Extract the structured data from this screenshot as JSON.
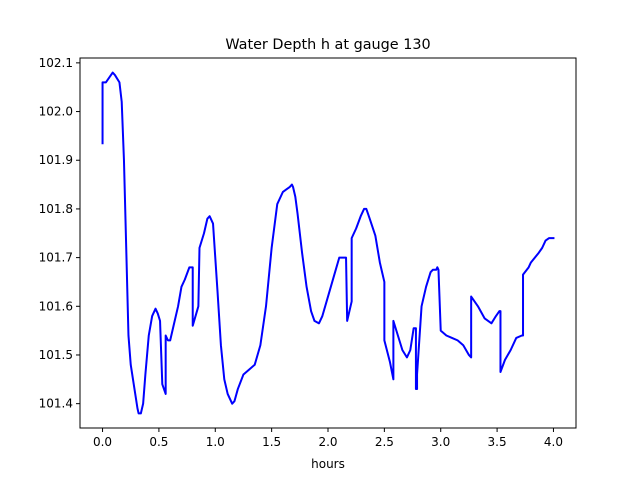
{
  "chart_data": {
    "type": "line",
    "title": "Water Depth h at gauge 130",
    "xlabel": "hours",
    "ylabel": "",
    "xlim": [
      -0.2,
      4.2
    ],
    "ylim": [
      101.35,
      102.11
    ],
    "xticks": [
      0.0,
      0.5,
      1.0,
      1.5,
      2.0,
      2.5,
      3.0,
      3.5,
      4.0
    ],
    "xtick_labels": [
      "0.0",
      "0.5",
      "1.0",
      "1.5",
      "2.0",
      "2.5",
      "3.0",
      "3.5",
      "4.0"
    ],
    "yticks": [
      101.4,
      101.5,
      101.6,
      101.7,
      101.8,
      101.9,
      102.0,
      102.1
    ],
    "ytick_labels": [
      "101.4",
      "101.5",
      "101.6",
      "101.7",
      "101.8",
      "101.9",
      "102.0",
      "102.1"
    ],
    "grid": false,
    "legend": "none",
    "series": [
      {
        "color": "#0000ff",
        "x": [
          0.0,
          0.0,
          0.03,
          0.06,
          0.09,
          0.11,
          0.15,
          0.17,
          0.19,
          0.21,
          0.23,
          0.25,
          0.27,
          0.29,
          0.31,
          0.32,
          0.34,
          0.36,
          0.38,
          0.41,
          0.44,
          0.47,
          0.49,
          0.51,
          0.53,
          0.53,
          0.56,
          0.56,
          0.58,
          0.6,
          0.63,
          0.67,
          0.7,
          0.73,
          0.77,
          0.8,
          0.8,
          0.85,
          0.86,
          0.9,
          0.93,
          0.95,
          0.98,
          1.0,
          1.02,
          1.05,
          1.08,
          1.11,
          1.15,
          1.17,
          1.2,
          1.25,
          1.3,
          1.35,
          1.4,
          1.45,
          1.5,
          1.55,
          1.6,
          1.63,
          1.66,
          1.68,
          1.69,
          1.71,
          1.73,
          1.77,
          1.81,
          1.85,
          1.88,
          1.92,
          1.95,
          2.0,
          2.05,
          2.1,
          2.16,
          2.17,
          2.17,
          2.21,
          2.21,
          2.25,
          2.29,
          2.32,
          2.34,
          2.37,
          2.42,
          2.46,
          2.5,
          2.5,
          2.55,
          2.58,
          2.58,
          2.62,
          2.66,
          2.7,
          2.73,
          2.76,
          2.78,
          2.78,
          2.79,
          2.79,
          2.83,
          2.87,
          2.91,
          2.93,
          2.96,
          2.97,
          2.98,
          3.0,
          3.05,
          3.1,
          3.15,
          3.2,
          3.25,
          3.27,
          3.27,
          3.33,
          3.39,
          3.45,
          3.49,
          3.52,
          3.53,
          3.53,
          3.57,
          3.62,
          3.67,
          3.72,
          3.73,
          3.73,
          3.78,
          3.8,
          3.87,
          3.9,
          3.93,
          3.96,
          4.0
        ],
        "y": [
          101.935,
          102.06,
          102.06,
          102.07,
          102.08,
          102.075,
          102.06,
          102.02,
          101.9,
          101.72,
          101.54,
          101.48,
          101.45,
          101.42,
          101.39,
          101.38,
          101.38,
          101.4,
          101.46,
          101.54,
          101.58,
          101.595,
          101.585,
          101.57,
          101.44,
          101.44,
          101.42,
          101.54,
          101.53,
          101.53,
          101.56,
          101.6,
          101.64,
          101.655,
          101.68,
          101.68,
          101.56,
          101.6,
          101.72,
          101.75,
          101.78,
          101.785,
          101.77,
          101.7,
          101.63,
          101.52,
          101.45,
          101.42,
          101.4,
          101.405,
          101.43,
          101.46,
          101.47,
          101.48,
          101.52,
          101.6,
          101.72,
          101.81,
          101.835,
          101.84,
          101.845,
          101.85,
          101.845,
          101.825,
          101.79,
          101.71,
          101.64,
          101.59,
          101.57,
          101.565,
          101.58,
          101.62,
          101.66,
          101.7,
          101.7,
          101.57,
          101.57,
          101.61,
          101.74,
          101.76,
          101.785,
          101.8,
          101.8,
          101.78,
          101.745,
          101.69,
          101.65,
          101.53,
          101.485,
          101.45,
          101.57,
          101.54,
          101.51,
          101.495,
          101.51,
          101.555,
          101.555,
          101.43,
          101.43,
          101.46,
          101.6,
          101.64,
          101.67,
          101.675,
          101.675,
          101.68,
          101.675,
          101.55,
          101.54,
          101.535,
          101.53,
          101.52,
          101.5,
          101.495,
          101.62,
          101.6,
          101.575,
          101.565,
          101.58,
          101.59,
          101.59,
          101.465,
          101.49,
          101.51,
          101.535,
          101.54,
          101.54,
          101.665,
          101.68,
          101.69,
          101.71,
          101.72,
          101.735,
          101.74,
          101.74
        ]
      }
    ]
  }
}
